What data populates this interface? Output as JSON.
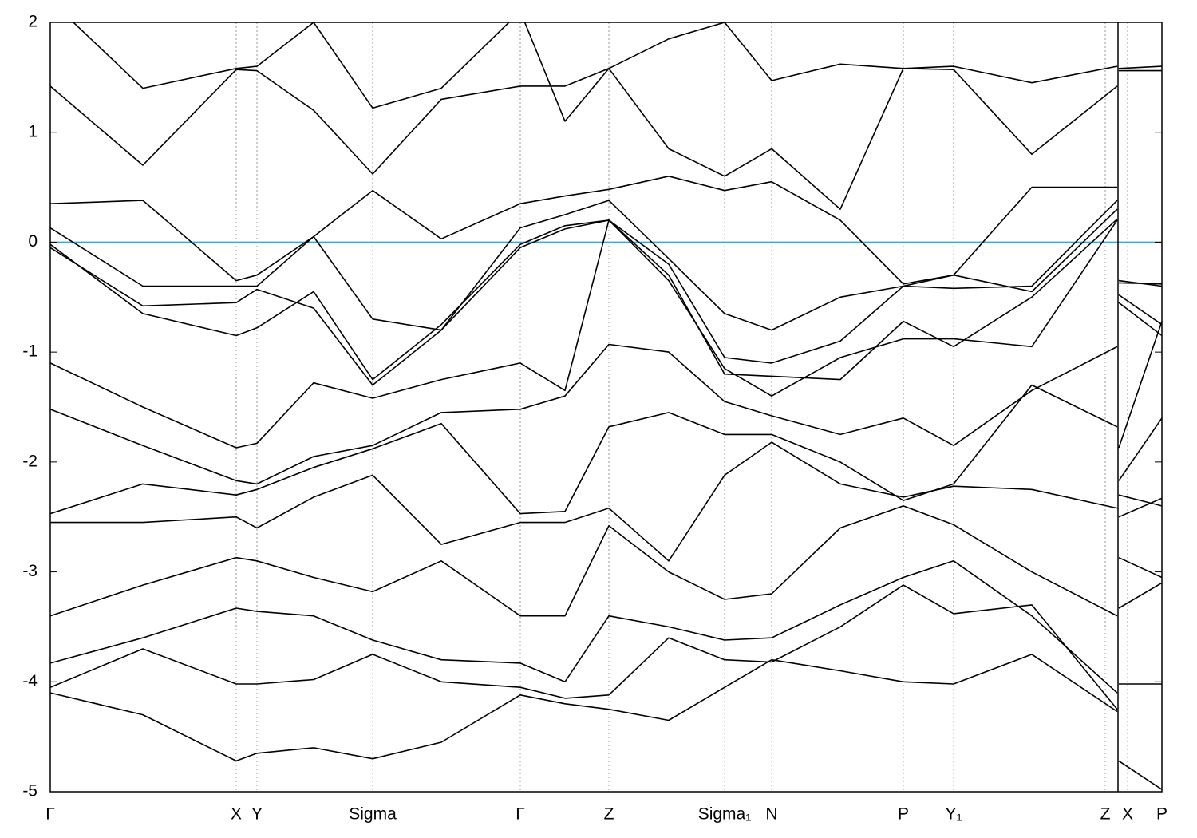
{
  "chart_data": {
    "type": "line",
    "x": [
      0,
      116,
      233,
      259,
      330,
      404,
      490,
      589,
      645,
      700,
      775,
      845,
      904,
      990,
      1069,
      1132,
      1230,
      1337,
      1338,
      1339,
      1393
    ],
    "xlim": [
      0,
      1393
    ],
    "xticks": [
      {
        "value": 0,
        "label": "Γ"
      },
      {
        "value": 233,
        "label": "X"
      },
      {
        "value": 259,
        "label": "Y"
      },
      {
        "value": 404,
        "label": "Sigma"
      },
      {
        "value": 589,
        "label": "Γ"
      },
      {
        "value": 700,
        "label": "Z"
      },
      {
        "value": 845,
        "label": "Sigma₁"
      },
      {
        "value": 904,
        "label": "N"
      },
      {
        "value": 1069,
        "label": "P"
      },
      {
        "value": 1132,
        "label": "Y₁"
      },
      {
        "value": 1322,
        "label": "Z"
      },
      {
        "value": 1350,
        "label": "X"
      },
      {
        "value": 1393,
        "label": "P"
      }
    ],
    "ylim": [
      -5,
      2
    ],
    "yticks": [
      2,
      1,
      0,
      -1,
      -2,
      -3,
      -4,
      -5
    ],
    "fermi_level": 0,
    "fermi_color": "#4aa3c4",
    "grid": true,
    "series": [
      {
        "color": "#000000",
        "values": [
          -4.1,
          -4.3,
          -4.72,
          -4.65,
          -4.6,
          -4.7,
          -4.55,
          -4.12,
          -4.2,
          -4.25,
          -4.35,
          -4.05,
          -3.8,
          -3.9,
          -4.0,
          -4.02,
          -3.75,
          -4.27,
          null,
          -4.72,
          -4.98
        ]
      },
      {
        "color": "#000000",
        "values": [
          -4.05,
          -3.7,
          -4.02,
          -4.02,
          -3.98,
          -3.75,
          -4.0,
          -4.05,
          -4.15,
          -4.12,
          -3.6,
          -3.8,
          -3.82,
          -3.5,
          -3.12,
          -3.38,
          -3.3,
          -4.25,
          null,
          -4.02,
          -4.02
        ]
      },
      {
        "color": "#000000",
        "values": [
          -3.83,
          -3.6,
          -3.33,
          -3.36,
          -3.4,
          -3.62,
          -3.8,
          -3.83,
          -4.0,
          -3.4,
          -3.5,
          -3.62,
          -3.6,
          -3.3,
          -3.05,
          -2.9,
          -3.4,
          -4.1,
          null,
          -3.33,
          -3.1
        ]
      },
      {
        "color": "#000000",
        "values": [
          -3.4,
          -3.12,
          -2.87,
          -2.9,
          -3.05,
          -3.18,
          -2.9,
          -3.4,
          -3.4,
          -2.58,
          -3.0,
          -3.25,
          -3.2,
          -2.6,
          -2.4,
          -2.57,
          -3.0,
          -3.4,
          null,
          -2.87,
          -3.05
        ]
      },
      {
        "color": "#000000",
        "values": [
          -2.55,
          -2.55,
          -2.5,
          -2.6,
          -2.32,
          -2.12,
          -2.75,
          -2.55,
          -2.55,
          -2.42,
          -2.9,
          -2.12,
          -1.82,
          -2.2,
          -2.32,
          -2.22,
          -2.25,
          -2.42,
          null,
          -2.5,
          -2.33
        ]
      },
      {
        "color": "#000000",
        "values": [
          -2.47,
          -2.2,
          -2.3,
          -2.25,
          -2.05,
          -1.88,
          -1.65,
          -2.47,
          -2.45,
          -1.68,
          -1.55,
          -1.75,
          -1.75,
          -2.0,
          -2.35,
          -2.2,
          -1.3,
          -1.68,
          null,
          -2.3,
          -2.4
        ]
      },
      {
        "color": "#000000",
        "values": [
          -1.52,
          -1.85,
          -2.17,
          -2.2,
          -1.95,
          -1.85,
          -1.55,
          -1.52,
          -1.4,
          -0.93,
          -1.0,
          -1.45,
          -1.58,
          -1.75,
          -1.6,
          -1.85,
          -1.35,
          -0.95,
          null,
          -2.17,
          -1.6
        ]
      },
      {
        "color": "#000000",
        "values": [
          -1.1,
          -1.5,
          -1.87,
          -1.83,
          -1.28,
          -1.42,
          -1.25,
          -1.1,
          -1.35,
          0.2,
          -0.35,
          -1.15,
          -1.4,
          -1.05,
          -0.88,
          -0.88,
          -0.95,
          0.2,
          null,
          -1.87,
          -0.72
        ]
      },
      {
        "color": "#000000",
        "values": [
          -0.05,
          -0.58,
          -0.55,
          -0.43,
          -0.6,
          -1.3,
          -0.8,
          -0.05,
          0.12,
          0.2,
          -0.3,
          -1.2,
          -1.22,
          -1.25,
          -0.72,
          -0.95,
          -0.5,
          0.21,
          null,
          -0.55,
          -0.85
        ]
      },
      {
        "color": "#000000",
        "values": [
          -0.02,
          -0.65,
          -0.85,
          -0.78,
          -0.45,
          -1.25,
          -0.75,
          -0.02,
          0.15,
          0.2,
          -0.2,
          -1.05,
          -1.1,
          -0.9,
          -0.4,
          -0.3,
          -0.45,
          0.3,
          null,
          -0.48,
          -0.75
        ]
      },
      {
        "color": "#000000",
        "values": [
          0.13,
          -0.4,
          -0.4,
          -0.4,
          0.05,
          -0.7,
          -0.8,
          0.13,
          0.25,
          0.38,
          -0.15,
          -0.65,
          -0.8,
          -0.5,
          -0.4,
          -0.42,
          -0.4,
          0.38,
          null,
          -0.35,
          -0.4
        ]
      },
      {
        "color": "#000000",
        "values": [
          0.35,
          0.38,
          -0.35,
          -0.3,
          0.05,
          0.47,
          0.03,
          0.35,
          0.42,
          0.48,
          0.6,
          0.47,
          0.55,
          0.2,
          -0.38,
          -0.3,
          0.5,
          0.5,
          null,
          -0.37,
          -0.38
        ]
      },
      {
        "color": "#000000",
        "values": [
          1.42,
          0.7,
          1.57,
          1.56,
          1.2,
          0.62,
          1.3,
          1.42,
          1.42,
          1.58,
          0.85,
          0.6,
          0.85,
          0.3,
          1.58,
          1.57,
          0.8,
          1.42,
          null,
          1.56,
          1.56
        ]
      },
      {
        "color": "#000000",
        "values": [
          2.2,
          1.4,
          1.58,
          1.6,
          2.0,
          1.22,
          1.4,
          2.1,
          1.1,
          1.58,
          1.85,
          2.0,
          1.47,
          1.62,
          1.58,
          1.6,
          1.45,
          1.6,
          null,
          1.58,
          1.6
        ]
      }
    ]
  }
}
